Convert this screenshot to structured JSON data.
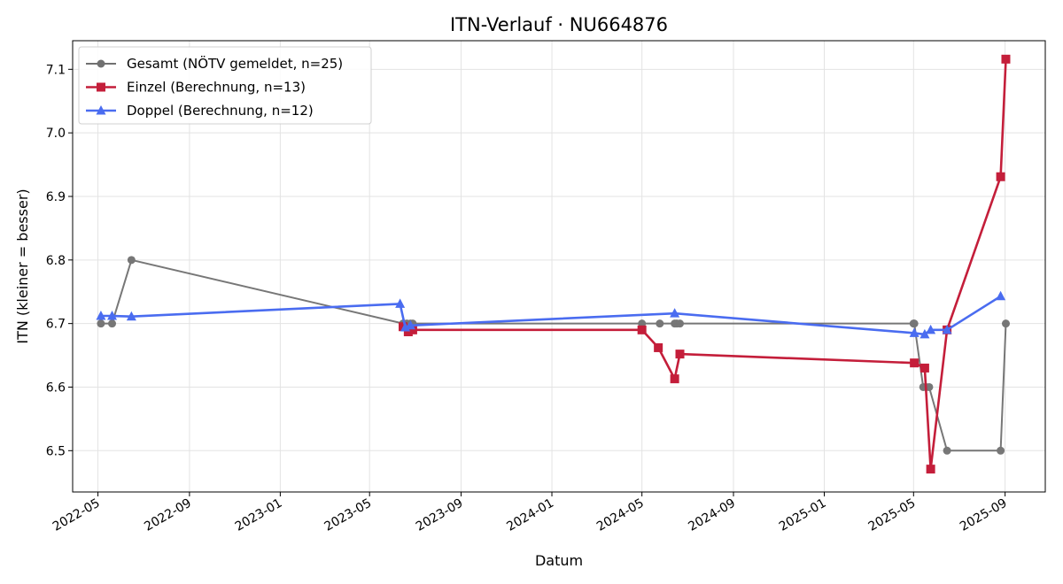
{
  "chart_data": {
    "type": "line",
    "title": "ITN-Verlauf · NU664876",
    "xlabel": "Datum",
    "ylabel": "ITN  (kleiner = besser)",
    "xlim": [
      "2022-03-28",
      "2025-10-25"
    ],
    "ylim": [
      6.435,
      7.145
    ],
    "grid": true,
    "legend_position": "top-left",
    "x_ticks": [
      "2022-05",
      "2022-09",
      "2023-01",
      "2023-05",
      "2023-09",
      "2024-01",
      "2024-05",
      "2024-09",
      "2025-01",
      "2025-05",
      "2025-09"
    ],
    "y_ticks": [
      "6.5",
      "6.6",
      "6.7",
      "6.8",
      "6.9",
      "7.0",
      "7.1"
    ],
    "series": [
      {
        "name": "Gesamt (NÖTV gemeldet, n=25)",
        "color": "#707070",
        "marker": "circle",
        "points": [
          {
            "x": "2022-05-05",
            "y": 6.7
          },
          {
            "x": "2022-05-20",
            "y": 6.7
          },
          {
            "x": "2022-06-15",
            "y": 6.8
          },
          {
            "x": "2023-06-15",
            "y": 6.7
          },
          {
            "x": "2023-06-20",
            "y": 6.7
          },
          {
            "x": "2023-06-25",
            "y": 6.7
          },
          {
            "x": "2023-06-28",
            "y": 6.7
          },
          {
            "x": "2024-05-01",
            "y": 6.7
          },
          {
            "x": "2024-05-25",
            "y": 6.7
          },
          {
            "x": "2024-06-14",
            "y": 6.7
          },
          {
            "x": "2024-06-17",
            "y": 6.7
          },
          {
            "x": "2024-06-21",
            "y": 6.7
          },
          {
            "x": "2025-05-01",
            "y": 6.7
          },
          {
            "x": "2025-05-02",
            "y": 6.7
          },
          {
            "x": "2025-05-14",
            "y": 6.6
          },
          {
            "x": "2025-05-18",
            "y": 6.6
          },
          {
            "x": "2025-05-22",
            "y": 6.6
          },
          {
            "x": "2025-06-15",
            "y": 6.5
          },
          {
            "x": "2025-08-26",
            "y": 6.5
          },
          {
            "x": "2025-09-02",
            "y": 6.7
          }
        ]
      },
      {
        "name": "Einzel (Berechnung, n=13)",
        "color": "#c41e3a",
        "marker": "square",
        "points": [
          {
            "x": "2023-06-15",
            "y": 6.695
          },
          {
            "x": "2023-06-22",
            "y": 6.687
          },
          {
            "x": "2023-06-28",
            "y": 6.69
          },
          {
            "x": "2024-05-01",
            "y": 6.69
          },
          {
            "x": "2024-05-23",
            "y": 6.662
          },
          {
            "x": "2024-06-14",
            "y": 6.613
          },
          {
            "x": "2024-06-21",
            "y": 6.652
          },
          {
            "x": "2025-05-02",
            "y": 6.638
          },
          {
            "x": "2025-05-16",
            "y": 6.63
          },
          {
            "x": "2025-05-24",
            "y": 6.471
          },
          {
            "x": "2025-06-15",
            "y": 6.69
          },
          {
            "x": "2025-08-26",
            "y": 6.931
          },
          {
            "x": "2025-09-02",
            "y": 7.116
          }
        ]
      },
      {
        "name": "Doppel (Berechnung, n=12)",
        "color": "#4a6cf0",
        "marker": "triangle",
        "points": [
          {
            "x": "2022-05-05",
            "y": 6.712
          },
          {
            "x": "2022-05-20",
            "y": 6.712
          },
          {
            "x": "2022-06-15",
            "y": 6.711
          },
          {
            "x": "2023-06-11",
            "y": 6.731
          },
          {
            "x": "2023-06-18",
            "y": 6.694
          },
          {
            "x": "2023-06-25",
            "y": 6.697
          },
          {
            "x": "2024-06-14",
            "y": 6.716
          },
          {
            "x": "2025-05-02",
            "y": 6.685
          },
          {
            "x": "2025-05-16",
            "y": 6.683
          },
          {
            "x": "2025-05-24",
            "y": 6.69
          },
          {
            "x": "2025-06-15",
            "y": 6.69
          },
          {
            "x": "2025-08-26",
            "y": 6.743
          }
        ]
      }
    ]
  }
}
